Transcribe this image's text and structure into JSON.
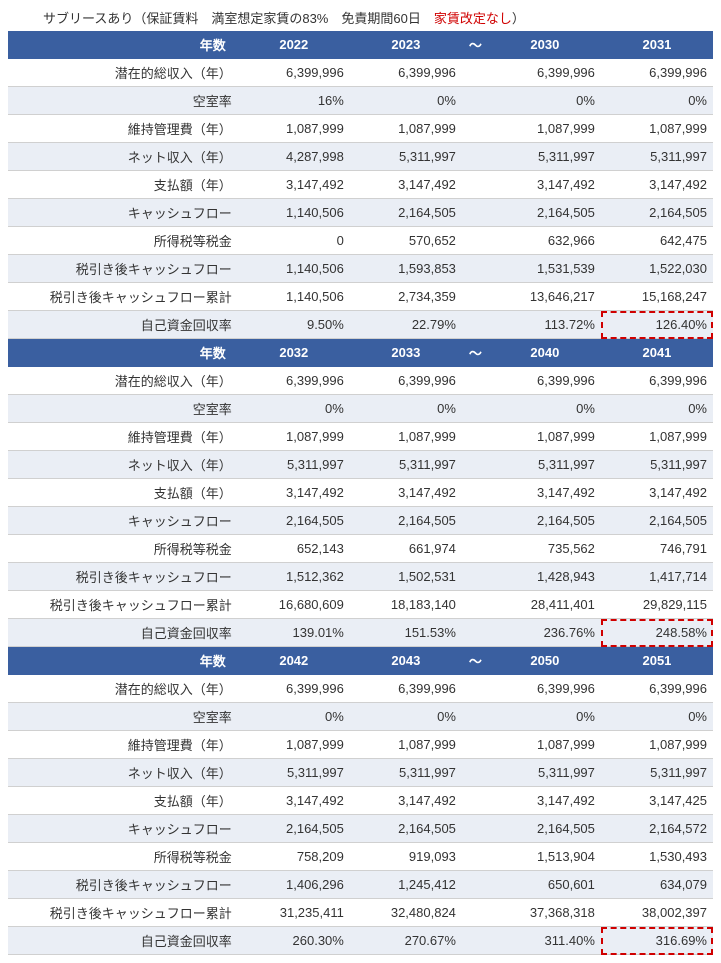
{
  "title": {
    "t1": "サブリースあり（保証賃料　満室想定家賃の83%　免責期間60日　",
    "t2": "家賃改定なし",
    "t3": "）"
  },
  "row_labels": [
    "潜在的総収入（年）",
    "空室率",
    "維持管理費（年）",
    "ネット収入（年）",
    "支払額（年）",
    "キャッシュフロー",
    "所得税等税金",
    "税引き後キャッシュフロー",
    "税引き後キャッシュフロー累計",
    "自己資金回収率"
  ],
  "year_label": "年数",
  "tilde": "〜",
  "blocks": [
    {
      "years": [
        "2022",
        "2023",
        "2030",
        "2031"
      ],
      "rows": [
        [
          "6,399,996",
          "6,399,996",
          "6,399,996",
          "6,399,996"
        ],
        [
          "16%",
          "0%",
          "0%",
          "0%"
        ],
        [
          "1,087,999",
          "1,087,999",
          "1,087,999",
          "1,087,999"
        ],
        [
          "4,287,998",
          "5,311,997",
          "5,311,997",
          "5,311,997"
        ],
        [
          "3,147,492",
          "3,147,492",
          "3,147,492",
          "3,147,492"
        ],
        [
          "1,140,506",
          "2,164,505",
          "2,164,505",
          "2,164,505"
        ],
        [
          "0",
          "570,652",
          "632,966",
          "642,475"
        ],
        [
          "1,140,506",
          "1,593,853",
          "1,531,539",
          "1,522,030"
        ],
        [
          "1,140,506",
          "2,734,359",
          "13,646,217",
          "15,168,247"
        ],
        [
          "9.50%",
          "22.79%",
          "113.72%",
          "126.40%"
        ]
      ],
      "highlight_last": true
    },
    {
      "years": [
        "2032",
        "2033",
        "2040",
        "2041"
      ],
      "rows": [
        [
          "6,399,996",
          "6,399,996",
          "6,399,996",
          "6,399,996"
        ],
        [
          "0%",
          "0%",
          "0%",
          "0%"
        ],
        [
          "1,087,999",
          "1,087,999",
          "1,087,999",
          "1,087,999"
        ],
        [
          "5,311,997",
          "5,311,997",
          "5,311,997",
          "5,311,997"
        ],
        [
          "3,147,492",
          "3,147,492",
          "3,147,492",
          "3,147,492"
        ],
        [
          "2,164,505",
          "2,164,505",
          "2,164,505",
          "2,164,505"
        ],
        [
          "652,143",
          "661,974",
          "735,562",
          "746,791"
        ],
        [
          "1,512,362",
          "1,502,531",
          "1,428,943",
          "1,417,714"
        ],
        [
          "16,680,609",
          "18,183,140",
          "28,411,401",
          "29,829,115"
        ],
        [
          "139.01%",
          "151.53%",
          "236.76%",
          "248.58%"
        ]
      ],
      "highlight_last": true
    },
    {
      "years": [
        "2042",
        "2043",
        "2050",
        "2051"
      ],
      "rows": [
        [
          "6,399,996",
          "6,399,996",
          "6,399,996",
          "6,399,996"
        ],
        [
          "0%",
          "0%",
          "0%",
          "0%"
        ],
        [
          "1,087,999",
          "1,087,999",
          "1,087,999",
          "1,087,999"
        ],
        [
          "5,311,997",
          "5,311,997",
          "5,311,997",
          "5,311,997"
        ],
        [
          "3,147,492",
          "3,147,492",
          "3,147,492",
          "3,147,425"
        ],
        [
          "2,164,505",
          "2,164,505",
          "2,164,505",
          "2,164,572"
        ],
        [
          "758,209",
          "919,093",
          "1,513,904",
          "1,530,493"
        ],
        [
          "1,406,296",
          "1,245,412",
          "650,601",
          "634,079"
        ],
        [
          "31,235,411",
          "32,480,824",
          "37,368,318",
          "38,002,397"
        ],
        [
          "260.30%",
          "270.67%",
          "311.40%",
          "316.69%"
        ]
      ],
      "highlight_last": true
    }
  ]
}
